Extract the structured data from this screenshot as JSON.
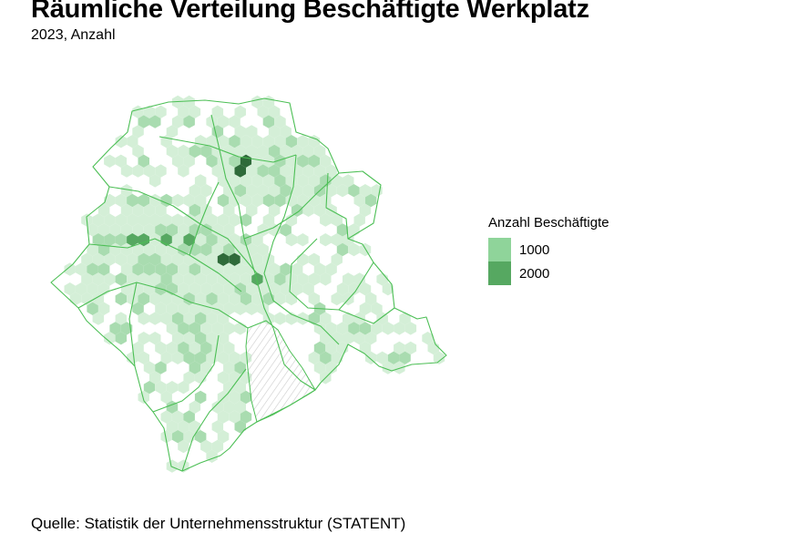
{
  "title": "Räumliche Verteilung Beschäftigte Werkplatz",
  "subtitle": "2023, Anzahl",
  "source": "Quelle: Statistik der Unternehmensstruktur (STATENT)",
  "legend": {
    "title": "Anzahl Beschäftigte",
    "items": [
      {
        "label": "1000",
        "color": "#8fd49a"
      },
      {
        "label": "2000",
        "color": "#56a861"
      }
    ]
  },
  "colors": {
    "boundary": "#4cbf55",
    "hex_low": "#d4efd7",
    "hex_mid": "#a9dcb0",
    "hex_high": "#56a861",
    "hex_top": "#2f6b3a",
    "lake_hatch": "#cccccc"
  }
}
